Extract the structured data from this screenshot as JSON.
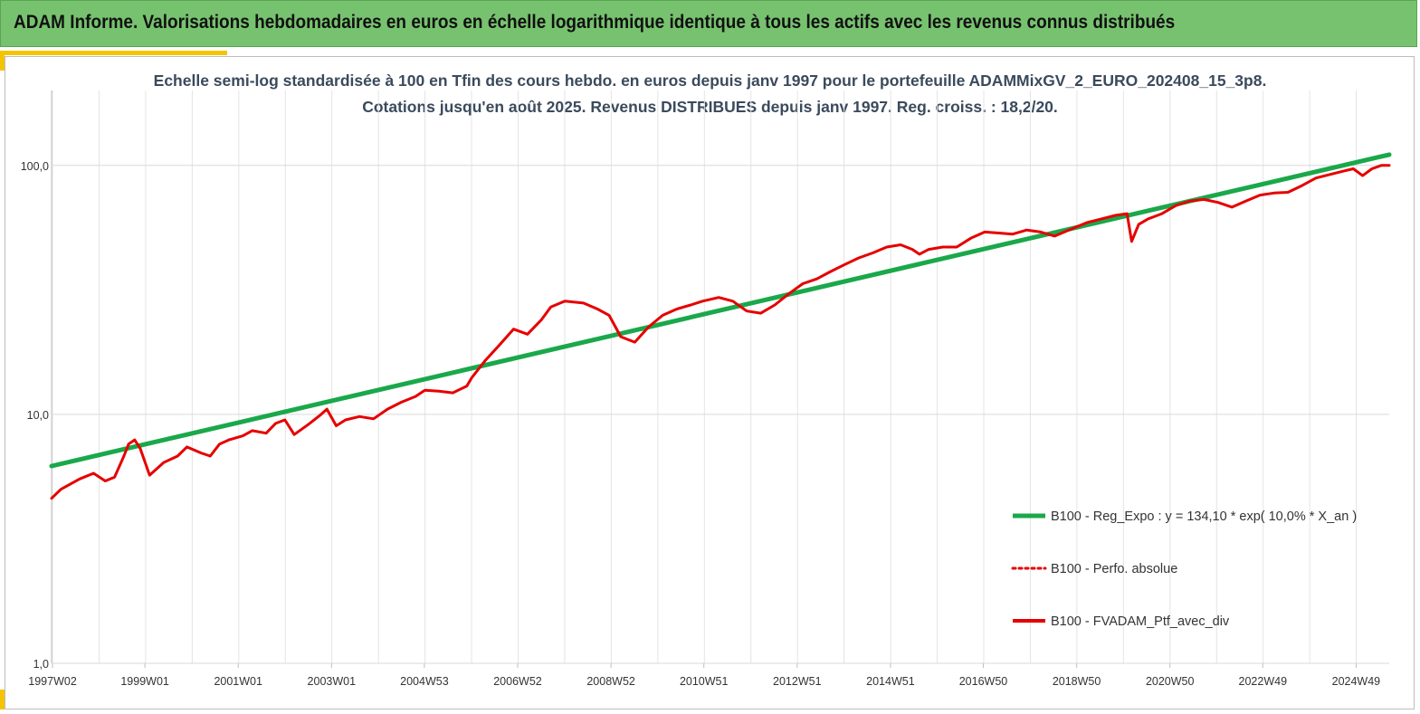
{
  "header": {
    "title": "ADAM Informe. Valorisations hebdomadaires en euros en échelle logarithmique identique à tous les actifs avec les revenus connus distribués"
  },
  "colors": {
    "header_bg": "#77c26f",
    "accent": "#f5c400",
    "regression": "#1aa84a",
    "portfolio": "#e60000",
    "grid": "#d9d9d9"
  },
  "chart_data": {
    "type": "line",
    "title": "Echelle semi-log standardisée à 100 en Tfin des cours hebdo.  en euros depuis janv 1997 pour le portefeuille ADAMMixGV_2_EURO_202408_15_3p8.",
    "subtitle": "Cotations  jusqu'en août 2025. Revenus DISTRIBUES depuis janv 1997. Reg. croiss. : 18,2/20.",
    "y_scale": "log",
    "ylim": [
      1,
      200
    ],
    "y_ticks": [
      1,
      10,
      100
    ],
    "y_tick_labels": [
      "1,0",
      "10,0",
      "100,0"
    ],
    "xlim": [
      1997.0,
      2025.67
    ],
    "x_ticks": [
      1997.02,
      1999.0,
      2001.0,
      2003.0,
      2004.99,
      2006.99,
      2008.99,
      2010.98,
      2012.98,
      2014.98,
      2016.97,
      2018.97,
      2020.97,
      2022.96,
      2024.96
    ],
    "x_tick_labels": [
      "1997W02",
      "1999W01",
      "2001W01",
      "2003W01",
      "2004W53",
      "2006W52",
      "2008W52",
      "2010W51",
      "2012W51",
      "2014W51",
      "2016W50",
      "2018W50",
      "2020W50",
      "2022W49",
      "2024W49"
    ],
    "grid": true,
    "legend_position": "right",
    "series": [
      {
        "name": "B100 - Reg_Expo : y = 134,10 * exp( 10,0% *  X_an )",
        "style": "solid-thick",
        "color": "#1aa84a",
        "x": [
          1997.0,
          2025.67
        ],
        "y": [
          6.2,
          110.5
        ]
      },
      {
        "name": "B100 - Perfo. absolue",
        "style": "dotted",
        "color": "#e60000",
        "x": [],
        "y": []
      },
      {
        "name": "B100 - FVADAM_Ptf_avec_div",
        "style": "solid",
        "color": "#e60000",
        "x": [
          1997.0,
          1997.2,
          1997.6,
          1997.9,
          1998.15,
          1998.35,
          1998.55,
          1998.65,
          1998.78,
          1998.9,
          1999.1,
          1999.4,
          1999.7,
          1999.9,
          2000.2,
          2000.4,
          2000.6,
          2000.8,
          2001.1,
          2001.3,
          2001.6,
          2001.8,
          2002.0,
          2002.2,
          2002.5,
          2002.75,
          2002.9,
          2003.1,
          2003.3,
          2003.6,
          2003.9,
          2004.2,
          2004.5,
          2004.8,
          2005.0,
          2005.3,
          2005.6,
          2005.9,
          2006.0,
          2006.3,
          2006.6,
          2006.9,
          2007.2,
          2007.5,
          2007.7,
          2008.0,
          2008.4,
          2008.7,
          2008.95,
          2009.2,
          2009.5,
          2009.8,
          2010.1,
          2010.4,
          2010.7,
          2010.95,
          2011.3,
          2011.6,
          2011.9,
          2012.2,
          2012.5,
          2012.8,
          2013.1,
          2013.4,
          2013.7,
          2014.0,
          2014.3,
          2014.6,
          2014.9,
          2015.2,
          2015.45,
          2015.6,
          2015.8,
          2016.1,
          2016.4,
          2016.7,
          2017.0,
          2017.3,
          2017.6,
          2017.9,
          2018.2,
          2018.5,
          2018.9,
          2019.2,
          2019.5,
          2019.8,
          2020.05,
          2020.15,
          2020.3,
          2020.5,
          2020.8,
          2021.1,
          2021.4,
          2021.7,
          2022.0,
          2022.3,
          2022.6,
          2022.9,
          2023.2,
          2023.5,
          2023.8,
          2024.1,
          2024.4,
          2024.7,
          2024.9,
          2025.1,
          2025.3,
          2025.5,
          2025.67
        ],
        "y": [
          4.6,
          5.0,
          5.5,
          5.8,
          5.4,
          5.6,
          6.8,
          7.6,
          7.9,
          7.3,
          5.7,
          6.4,
          6.8,
          7.4,
          7.0,
          6.8,
          7.6,
          7.9,
          8.2,
          8.6,
          8.4,
          9.2,
          9.5,
          8.3,
          9.1,
          9.9,
          10.5,
          9.0,
          9.5,
          9.8,
          9.6,
          10.5,
          11.2,
          11.8,
          12.5,
          12.4,
          12.2,
          13.0,
          14.0,
          16.5,
          19.0,
          22.0,
          21.0,
          24.0,
          27.0,
          28.5,
          28.0,
          26.5,
          25.0,
          20.5,
          19.5,
          22.5,
          25.0,
          26.5,
          27.5,
          28.5,
          29.5,
          28.5,
          26.0,
          25.5,
          27.5,
          30.5,
          33.5,
          35.0,
          37.5,
          40.0,
          42.5,
          44.5,
          47.0,
          48.0,
          46.0,
          44.0,
          46.0,
          47.0,
          47.0,
          51.0,
          54.0,
          53.5,
          53.0,
          55.0,
          54.0,
          52.0,
          56.0,
          59.0,
          61.0,
          63.0,
          64.0,
          49.5,
          58.0,
          61.0,
          64.0,
          69.0,
          72.0,
          73.0,
          71.0,
          68.0,
          72.0,
          76.0,
          77.5,
          78.0,
          83.0,
          89.0,
          92.0,
          95.0,
          97.0,
          91.0,
          97.0,
          100.0,
          100.0
        ]
      }
    ]
  }
}
